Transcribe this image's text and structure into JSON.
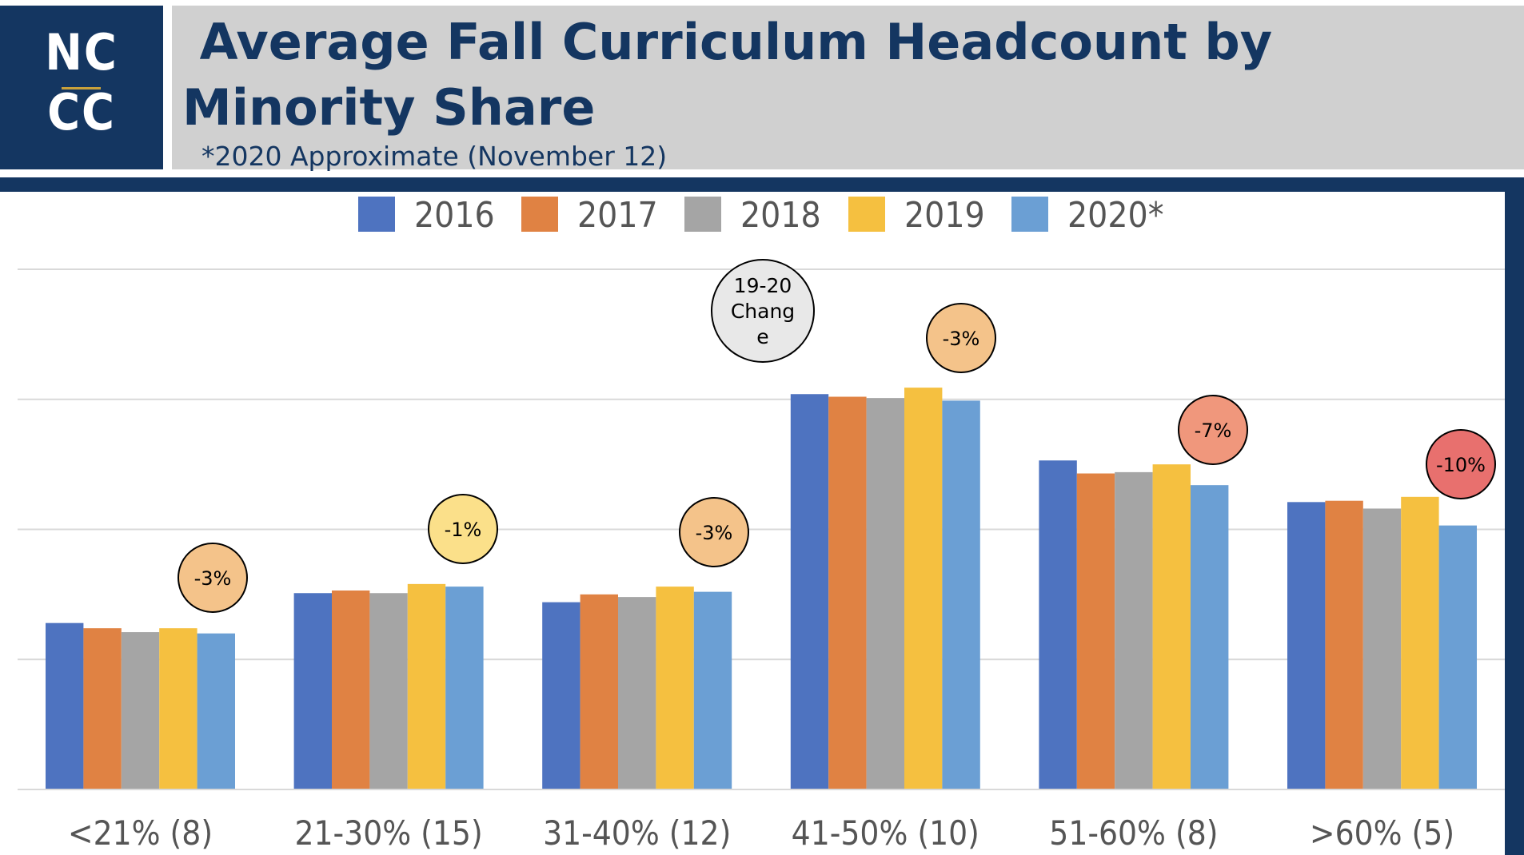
{
  "logo": {
    "line1": "NC",
    "line2": "CC"
  },
  "header": {
    "title": " Average Fall Curriculum Headcount by Minority Share",
    "subtitle": "*2020 Approximate (November 12)"
  },
  "chart_data": {
    "type": "bar",
    "title": "",
    "xlabel": "",
    "ylabel": "",
    "y_tick_labels_shown": false,
    "grid": true,
    "legend_placement": "top",
    "ylim": [
      0,
      4
    ],
    "categories": [
      "<21% (8)",
      "21-30% (15)",
      "31-40% (12)",
      "41-50% (10)",
      "51-60% (8)",
      ">60% (5)"
    ],
    "series": [
      {
        "name": "2016",
        "color": "#4e73c0",
        "values": [
          1.28,
          1.51,
          1.44,
          3.04,
          2.53,
          2.21
        ]
      },
      {
        "name": "2017",
        "color": "#e08243",
        "values": [
          1.24,
          1.53,
          1.5,
          3.02,
          2.43,
          2.22
        ]
      },
      {
        "name": "2018",
        "color": "#a5a5a5",
        "values": [
          1.21,
          1.51,
          1.48,
          3.01,
          2.44,
          2.16
        ]
      },
      {
        "name": "2019",
        "color": "#f5c040",
        "values": [
          1.24,
          1.58,
          1.56,
          3.09,
          2.5,
          2.25
        ]
      },
      {
        "name": "2020*",
        "color": "#6b9fd4",
        "values": [
          1.2,
          1.56,
          1.52,
          2.99,
          2.34,
          2.03
        ]
      }
    ],
    "annotations": {
      "header_bubble": {
        "lines": [
          "19-20",
          "Chang",
          "e"
        ],
        "color": "#e8e8e8"
      },
      "changes": [
        {
          "label": "-3%",
          "color": "#f4c38a"
        },
        {
          "label": "-1%",
          "color": "#fbe08a"
        },
        {
          "label": "-3%",
          "color": "#f4c38a"
        },
        {
          "label": "-3%",
          "color": "#f4c38a"
        },
        {
          "label": "-7%",
          "color": "#f0977c"
        },
        {
          "label": "-10%",
          "color": "#e8706e"
        }
      ]
    }
  }
}
